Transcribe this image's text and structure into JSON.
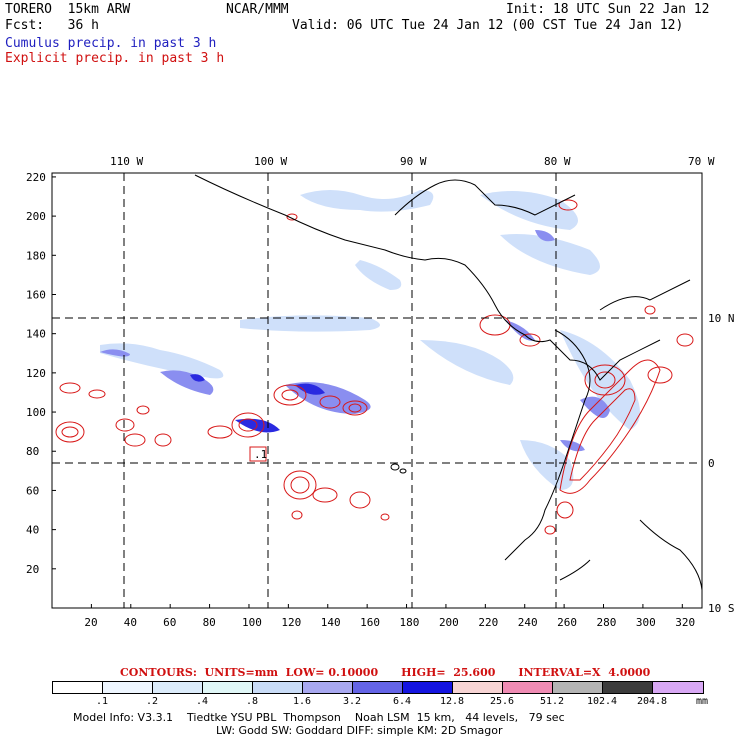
{
  "header": {
    "model": "TORERO  15km ARW",
    "org": "NCAR/MMM",
    "init": "Init: 18 UTC Sun 22 Jan 12",
    "fcst_label": "Fcst:   36 h",
    "valid": "Valid: 06 UTC Tue 24 Jan 12 (00 CST Tue 24 Jan 12)",
    "cumulus": "Cumulus precip. in past 3 h",
    "explicit": "Explicit precip. in past 3 h"
  },
  "map": {
    "longitude_labels": [
      "110 W",
      "100 W",
      "90 W",
      "80 W",
      "70 W"
    ],
    "latitude_labels": [
      "10 N",
      "0",
      "10 S"
    ],
    "grid_x_ticks": [
      "20",
      "40",
      "60",
      "80",
      "100",
      "120",
      "140",
      "160",
      "180",
      "200",
      "220",
      "240",
      "260",
      "280",
      "300",
      "320"
    ],
    "grid_y_ticks": [
      "20",
      "40",
      "60",
      "80",
      "100",
      "120",
      "140",
      "160",
      "180",
      "200",
      "220"
    ],
    "max_marker": ".1"
  },
  "contours": {
    "label": "CONTOURS:  UNITS=mm  LOW= 0.10000      HIGH=  25.600      INTERVAL=X  4.0000"
  },
  "colorbar": {
    "colors": [
      "#ffffff",
      "#eef6ff",
      "#dcecfb",
      "#e0f7f7",
      "#c9dcf7",
      "#a8a8f0",
      "#6464e6",
      "#1414e0",
      "#f7d4d4",
      "#f08cb4",
      "#b4b4b4",
      "#3c3c3c",
      "#d8a8f4"
    ],
    "labels": [
      ".1",
      ".2",
      ".4",
      ".8",
      "1.6",
      "3.2",
      "6.4",
      "12.8",
      "25.6",
      "51.2",
      "102.4",
      "204.8"
    ],
    "unit": "mm"
  },
  "footer": {
    "line1": "Model Info: V3.3.1    Tiedtke YSU PBL  Thompson    Noah LSM  15 km,   44 levels,   79 sec",
    "line2": "LW: Godd SW: Goddard DIFF: simple KM: 2D Smagor"
  }
}
